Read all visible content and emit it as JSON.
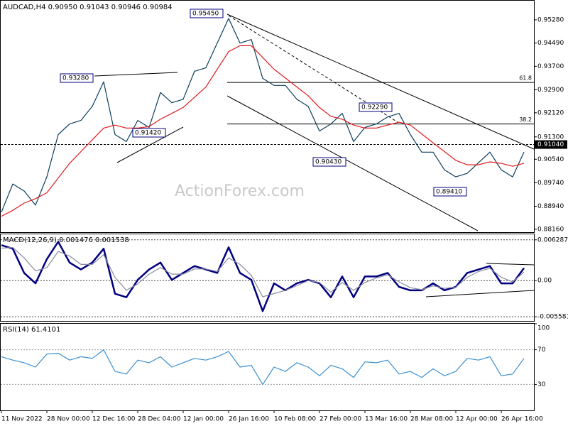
{
  "chart_data": [
    {
      "type": "line",
      "title": "AUDCAD,H4  0.90950 0.91043 0.90946 0.90984",
      "watermark": "ActionForex.com",
      "x": [
        0,
        2,
        4,
        6,
        8,
        10,
        12,
        14,
        16,
        18,
        20,
        22,
        24,
        26,
        28,
        30,
        32,
        34,
        36,
        38,
        40,
        42,
        44,
        46,
        48,
        50,
        52,
        54,
        56,
        58,
        60,
        62,
        64,
        66,
        68,
        70,
        72,
        74,
        76,
        78,
        80,
        82,
        84,
        86,
        88,
        90,
        92
      ],
      "xlim": [
        0,
        94
      ],
      "ylim": [
        0.8806,
        0.9593
      ],
      "yticks": [
        {
          "value": 0.9528,
          "label": "0.95280"
        },
        {
          "value": 0.9449,
          "label": "0.94490"
        },
        {
          "value": 0.937,
          "label": "0.93700"
        },
        {
          "value": 0.929,
          "label": "0.92900"
        },
        {
          "value": 0.9212,
          "label": "0.92120"
        },
        {
          "value": 0.913,
          "label": "0.91300"
        },
        {
          "value": 0.9054,
          "label": "0.90540"
        },
        {
          "value": 0.8974,
          "label": "0.89740"
        },
        {
          "value": 0.8894,
          "label": "0.88940"
        },
        {
          "value": 0.8816,
          "label": "0.88160"
        }
      ],
      "series": [
        {
          "color": "#0b3d5c",
          "values": [
            0.8874,
            0.897,
            0.8946,
            0.8898,
            0.8994,
            0.9138,
            0.9174,
            0.9186,
            0.9234,
            0.9317,
            0.9138,
            0.9114,
            0.9186,
            0.9162,
            0.9281,
            0.9246,
            0.9258,
            0.9353,
            0.9365,
            0.9449,
            0.9533,
            0.9449,
            0.9461,
            0.9329,
            0.9305,
            0.9305,
            0.9258,
            0.9234,
            0.915,
            0.9174,
            0.921,
            0.9114,
            0.9162,
            0.9174,
            0.9198,
            0.921,
            0.9138,
            0.9078,
            0.9078,
            0.9018,
            0.8994,
            0.9006,
            0.9042,
            0.9078,
            0.9018,
            0.8994,
            0.9078
          ]
        },
        {
          "color": "#e31a1c",
          "values": [
            0.886,
            0.888,
            0.8905,
            0.892,
            0.894,
            0.899,
            0.904,
            0.908,
            0.912,
            0.916,
            0.917,
            0.916,
            0.916,
            0.9165,
            0.919,
            0.921,
            0.923,
            0.9265,
            0.93,
            0.936,
            0.942,
            0.944,
            0.944,
            0.94,
            0.936,
            0.933,
            0.93,
            0.927,
            0.923,
            0.92,
            0.919,
            0.917,
            0.916,
            0.916,
            0.917,
            0.918,
            0.917,
            0.914,
            0.911,
            0.908,
            0.905,
            0.9035,
            0.9035,
            0.9045,
            0.904,
            0.903,
            0.904
          ]
        }
      ],
      "levels": [
        {
          "value": 0.9315,
          "label": "61.8"
        },
        {
          "value": 0.9174,
          "label": "38.2"
        }
      ],
      "current": {
        "value": 0.9104,
        "label": "0.91040"
      },
      "annotations": [
        "0.95450",
        "0.93280",
        "0.91420",
        "0.90430",
        "0.92290",
        "0.89410"
      ]
    },
    {
      "type": "line",
      "title": "MACD(12,26,9) 0.001476 0.001538",
      "x": [
        0,
        2,
        4,
        6,
        8,
        10,
        12,
        14,
        16,
        18,
        20,
        22,
        24,
        26,
        28,
        30,
        32,
        34,
        36,
        38,
        40,
        42,
        44,
        46,
        48,
        50,
        52,
        54,
        56,
        58,
        60,
        62,
        64,
        66,
        68,
        70,
        72,
        74,
        76,
        78,
        80,
        82,
        84,
        86,
        88,
        90,
        92
      ],
      "xlim": [
        0,
        94
      ],
      "ylim": [
        -0.00622,
        0.00714
      ],
      "yticks": [
        0.006287,
        {
          "value": 0,
          "label": "0.00"
        },
        -0.005581
      ],
      "series": [
        {
          "color": "#000080",
          "values": [
            0.00546,
            0.00492,
            0.00118,
            -0.00043,
            0.00332,
            0.00599,
            0.00278,
            0.00171,
            0.00278,
            0.00492,
            -0.00203,
            -0.00257,
            0.00011,
            0.00171,
            0.00278,
            0.00011,
            0.00118,
            0.00225,
            0.00171,
            0.00118,
            0.00514,
            0.00118,
            0.00011,
            -0.00471,
            -0.00043,
            -0.0015,
            -0.00043,
            0.00011,
            -0.00043,
            -0.00257,
            0.00064,
            -0.00257,
            0.00064,
            0.00064,
            0.00118,
            -0.00096,
            -0.0015,
            -0.0015,
            -0.00043,
            -0.0015,
            -0.00096,
            0.00118,
            0.00171,
            0.00225,
            -0.00043,
            -0.00043,
            0.00193
          ]
        },
        {
          "color": "#8a8aa0",
          "values": [
            0.005,
            0.0051,
            0.0035,
            0.0015,
            0.002,
            0.0045,
            0.0038,
            0.0025,
            0.0025,
            0.004,
            0.0005,
            -0.0015,
            -0.0005,
            0.001,
            0.002,
            0.001,
            0.001,
            0.0018,
            0.0018,
            0.0014,
            0.0035,
            0.0025,
            0.0008,
            -0.0025,
            -0.002,
            -0.0015,
            -0.0008,
            0,
            -0.0003,
            -0.0018,
            -0.0003,
            -0.0015,
            -0.0003,
            0.0004,
            0.0009,
            -0.0002,
            -0.0011,
            -0.0014,
            -0.0008,
            -0.0012,
            -0.001,
            0.0005,
            0.0014,
            0.0019,
            0.0005,
            -0.0002,
            0.0013
          ]
        }
      ]
    },
    {
      "type": "line",
      "title": "RSI(14) 61.4101",
      "x": [
        0,
        2,
        4,
        6,
        8,
        10,
        12,
        14,
        16,
        18,
        20,
        22,
        24,
        26,
        28,
        30,
        32,
        34,
        36,
        38,
        40,
        42,
        44,
        46,
        48,
        50,
        52,
        54,
        56,
        58,
        60,
        62,
        64,
        66,
        68,
        70,
        72,
        74,
        76,
        78,
        80,
        82,
        84,
        86,
        88,
        90,
        92
      ],
      "xlim": [
        0,
        94
      ],
      "ylim": [
        0,
        100
      ],
      "yticks": [
        100,
        70,
        30
      ],
      "series": [
        {
          "color": "#3a8fd0",
          "values": [
            62,
            58,
            55,
            50,
            65,
            66,
            58,
            62,
            60,
            70,
            45,
            42,
            58,
            55,
            62,
            50,
            55,
            60,
            58,
            62,
            68,
            50,
            52,
            30,
            50,
            45,
            55,
            50,
            40,
            52,
            48,
            38,
            56,
            55,
            58,
            42,
            45,
            38,
            48,
            40,
            45,
            60,
            58,
            62,
            40,
            42,
            60
          ]
        }
      ],
      "xticks": [
        {
          "value": 0,
          "label": "11 Nov 2022"
        },
        {
          "value": 8,
          "label": "28 Nov 00:00"
        },
        {
          "value": 16,
          "label": "12 Dec 16:00"
        },
        {
          "value": 24,
          "label": "28 Dec 04:00"
        },
        {
          "value": 32,
          "label": "12 Jan 00:00"
        },
        {
          "value": 40,
          "label": "26 Jan 16:00"
        },
        {
          "value": 48,
          "label": "10 Feb 08:00"
        },
        {
          "value": 56,
          "label": "27 Feb 00:00"
        },
        {
          "value": 64,
          "label": "13 Mar 16:00"
        },
        {
          "value": 72,
          "label": "28 Mar 08:00"
        },
        {
          "value": 80,
          "label": "12 Apr 00:00"
        },
        {
          "value": 88,
          "label": "26 Apr 16:00"
        }
      ]
    }
  ]
}
